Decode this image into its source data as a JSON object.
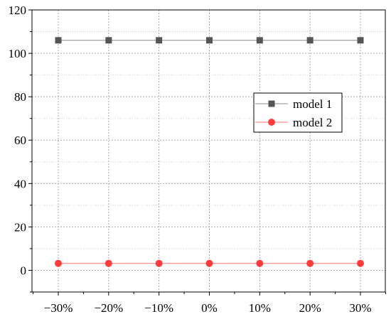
{
  "chart_data": {
    "type": "line",
    "title": "",
    "xlabel": "",
    "ylabel": "",
    "categories": [
      "−30%",
      "−20%",
      "−10%",
      "0%",
      "10%",
      "20%",
      "30%"
    ],
    "ylim": [
      -10,
      120
    ],
    "yticks": [
      0,
      20,
      40,
      60,
      80,
      100,
      120
    ],
    "grid": true,
    "legend_position": "center-right",
    "series": [
      {
        "name": "model 1",
        "values": [
          106,
          106,
          106,
          106,
          106,
          106,
          106
        ],
        "color": "#555555",
        "line_color": "#888888",
        "marker": "square"
      },
      {
        "name": "model 2",
        "values": [
          3.2,
          3.2,
          3.2,
          3.2,
          3.2,
          3.2,
          3.2
        ],
        "color": "#ff3b3b",
        "line_color": "#ff7070",
        "marker": "circle"
      }
    ]
  }
}
